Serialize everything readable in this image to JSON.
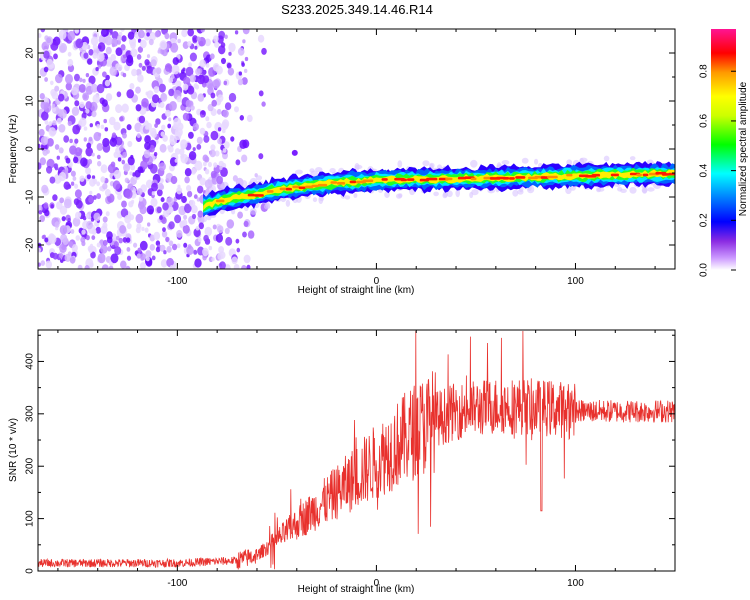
{
  "title": "S233.2025.349.14.46.R14",
  "chart_data": [
    {
      "type": "heatmap",
      "name": "spectrogram",
      "xlabel": "Height of straight line (km)",
      "ylabel": "Frequency (Hz)",
      "xlim": [
        -170,
        150
      ],
      "ylim": [
        -25,
        25
      ],
      "xticks": [
        -100,
        0,
        100
      ],
      "yticks": [
        -20,
        -10,
        0,
        10,
        20
      ],
      "signal_track": {
        "x": [
          -87,
          -80,
          -70,
          -60,
          -50,
          -40,
          -30,
          -20,
          -10,
          0,
          20,
          40,
          60,
          80,
          100,
          120,
          140,
          150
        ],
        "frequency": [
          -12,
          -11,
          -10,
          -9.5,
          -8.5,
          -8,
          -7.5,
          -7,
          -6.8,
          -6.5,
          -6.3,
          -6.2,
          -6,
          -5.8,
          -5.6,
          -5.4,
          -5.2,
          -5.2
        ]
      },
      "noise_region_x": [
        -170,
        -62
      ],
      "colorbar": {
        "label": "Normalized spectral amplitude",
        "ticks": [
          0.0,
          0.2,
          0.4,
          0.6,
          0.8
        ],
        "tick_labels": [
          "0.0",
          "0.2",
          "0.4",
          "0.6",
          "0.8"
        ],
        "range": [
          0,
          0.97
        ]
      }
    },
    {
      "type": "line",
      "name": "snr",
      "xlabel": "Height of straight line (km)",
      "ylabel": "SNR (10 * v/v)",
      "xlim": [
        -170,
        150
      ],
      "ylim": [
        0,
        460
      ],
      "xticks": [
        -100,
        0,
        100
      ],
      "yticks": [
        0,
        100,
        200,
        300,
        400
      ],
      "color": "#e8312d",
      "trend": {
        "x": [
          -170,
          -100,
          -70,
          -60,
          -50,
          -40,
          -30,
          -20,
          -10,
          0,
          10,
          20,
          30,
          40,
          50,
          60,
          70,
          80,
          90,
          100,
          120,
          150
        ],
        "y": [
          15,
          15,
          20,
          30,
          60,
          90,
          120,
          150,
          180,
          210,
          240,
          270,
          290,
          305,
          310,
          315,
          315,
          312,
          310,
          305,
          305,
          305
        ]
      }
    }
  ]
}
